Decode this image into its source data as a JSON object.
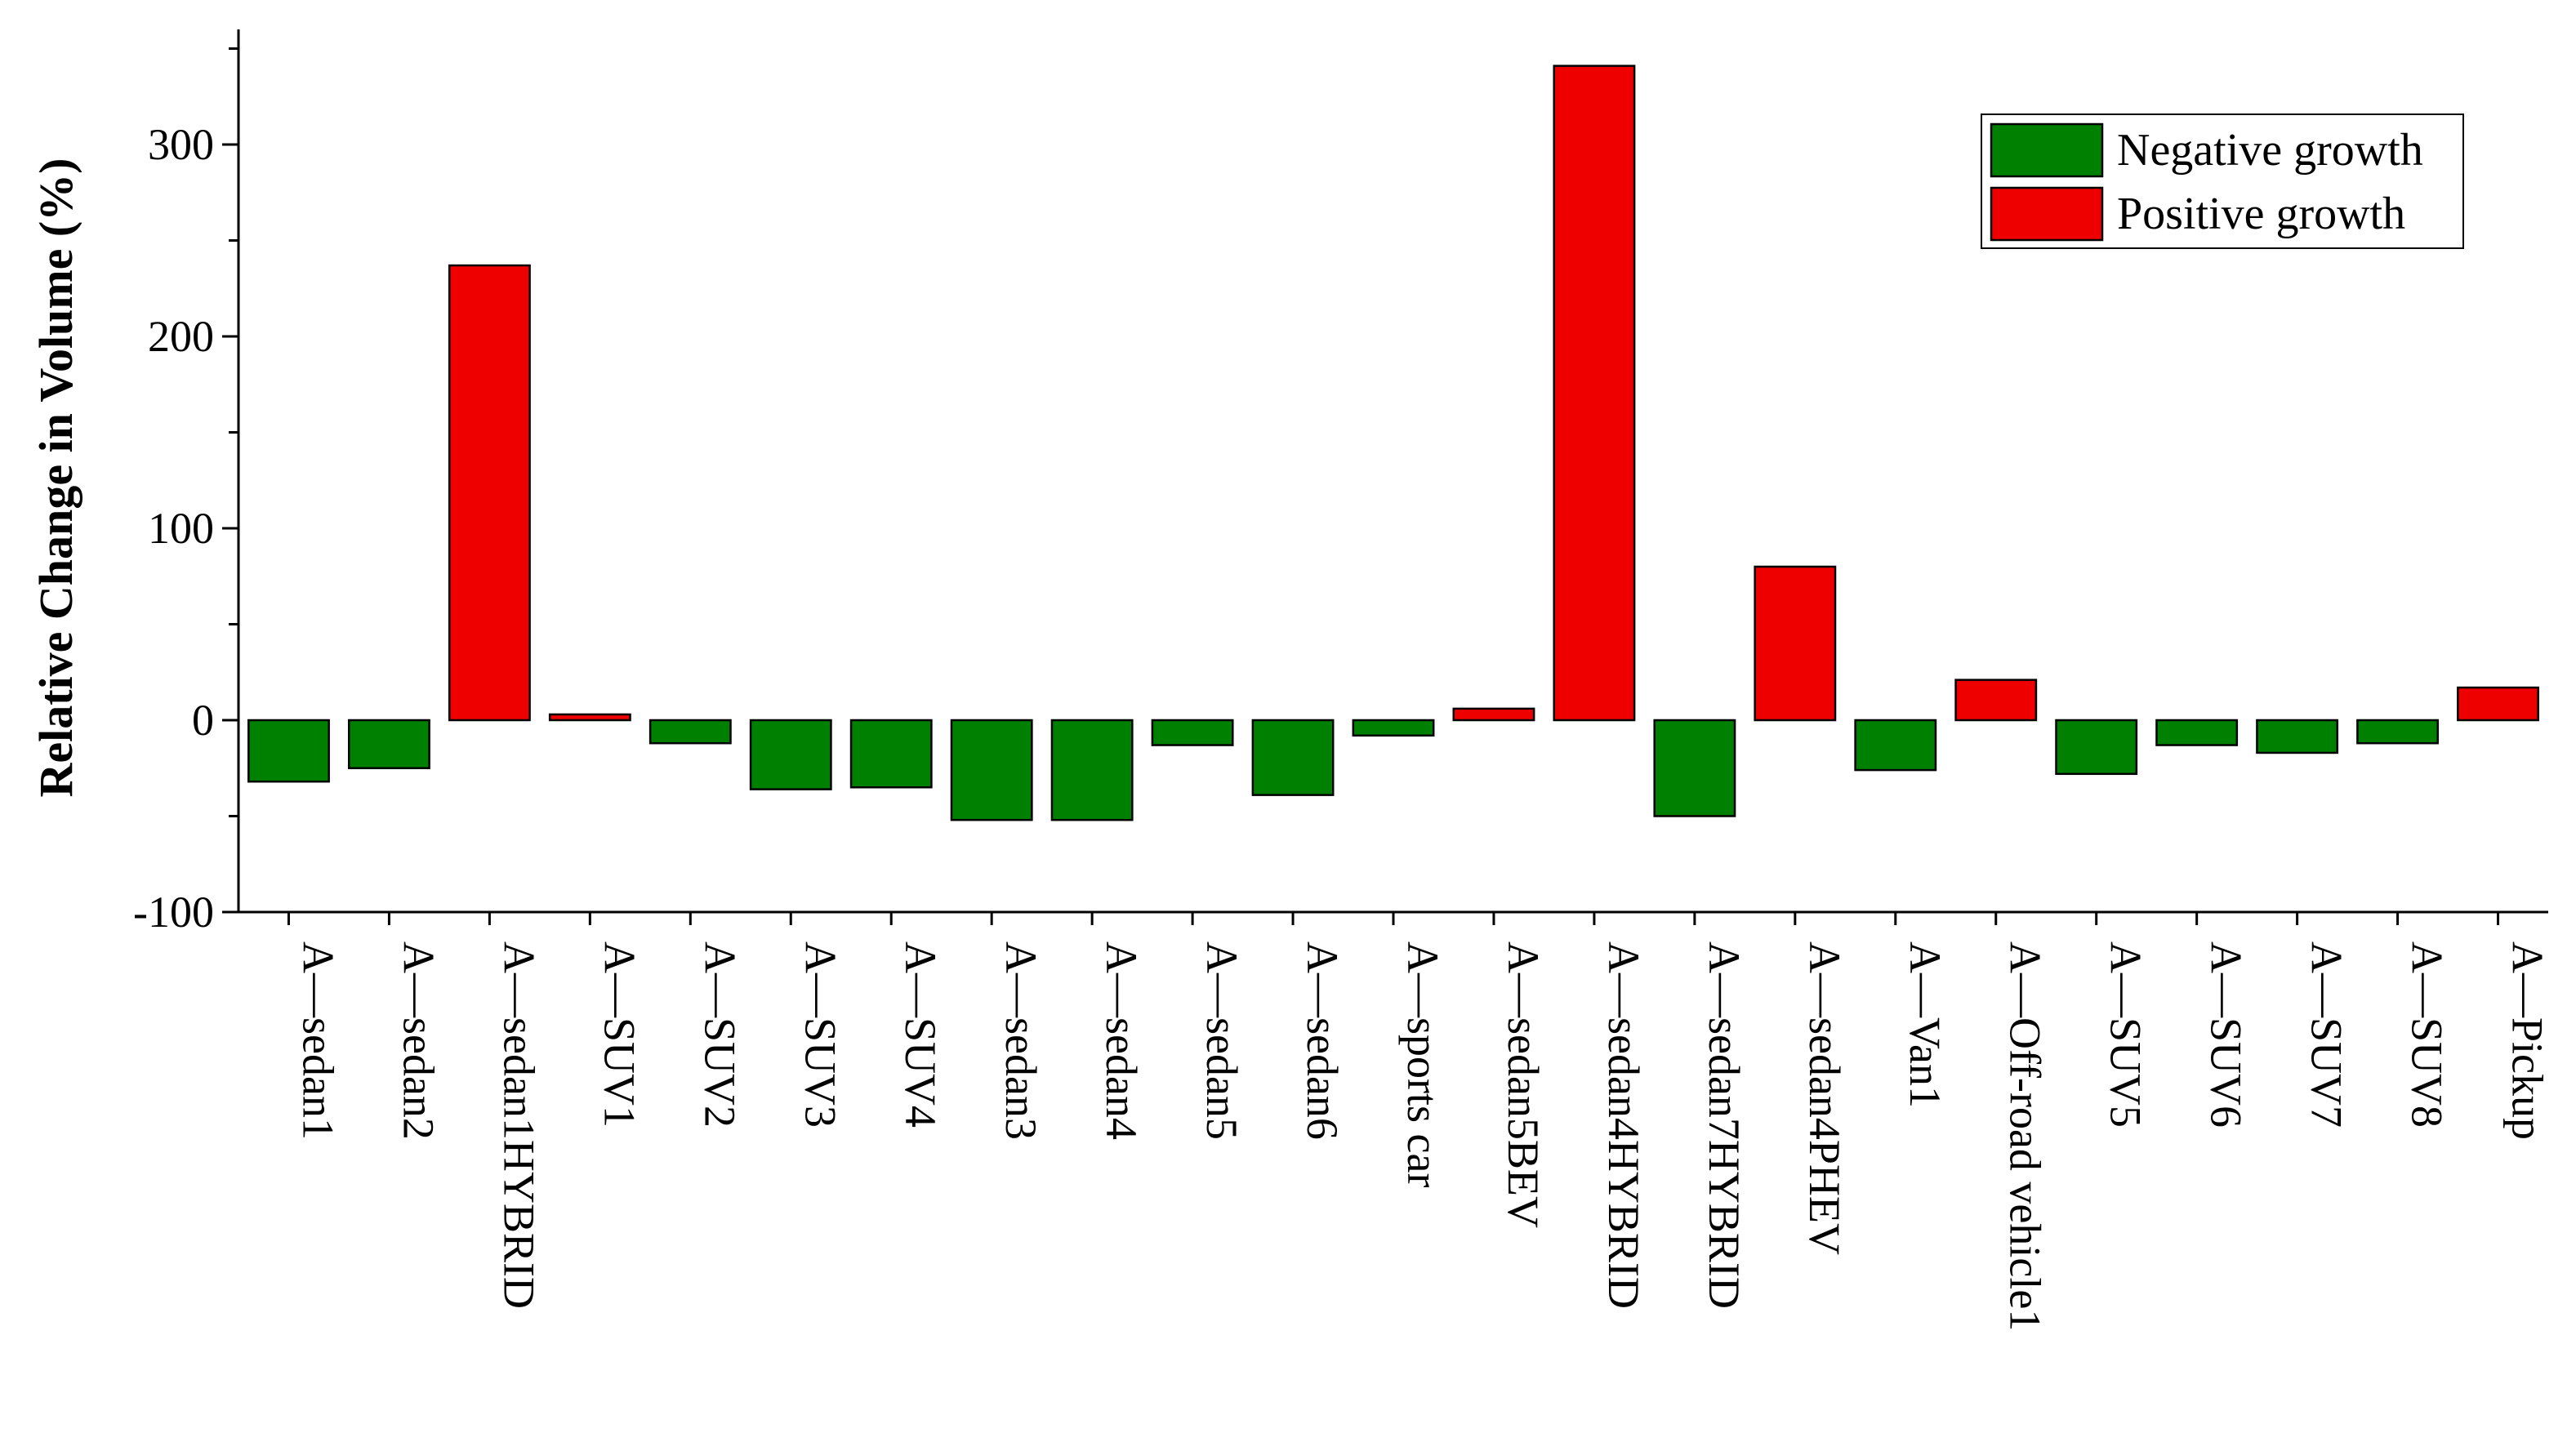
{
  "chart_data": {
    "type": "bar",
    "title": "",
    "xlabel": "",
    "ylabel": "Relative Change in Volume (%)",
    "ylim": [
      -100,
      350
    ],
    "yticks": [
      -100,
      0,
      100,
      200,
      300
    ],
    "grid": false,
    "legend_position": "top-right",
    "colors": {
      "negative": "#008000",
      "positive": "#ee0000"
    },
    "legend": [
      {
        "key": "negative",
        "label": "Negative growth"
      },
      {
        "key": "positive",
        "label": "Positive growth"
      }
    ],
    "categories": [
      "A—sedan1",
      "A—sedan2",
      "A—sedan1HYBRID",
      "A—SUV1",
      "A—SUV2",
      "A—SUV3",
      "A—SUV4",
      "A—sedan3",
      "A—sedan4",
      "A—sedan5",
      "A—sedan6",
      "A—sports car",
      "A—sedan5BEV",
      "A—sedan4HYBRID",
      "A—sedan7HYBRID",
      "A—sedan4PHEV",
      "A—Van1",
      "A—Off-road vehicle1",
      "A—SUV5",
      "A—SUV6",
      "A—SUV7",
      "A—SUV8",
      "A—Pickup"
    ],
    "values": [
      -32,
      -25,
      237,
      3,
      -12,
      -36,
      -35,
      -52,
      -52,
      -13,
      -39,
      -8,
      6,
      341,
      -50,
      80,
      -26,
      21,
      -28,
      -13,
      -17,
      -12,
      17
    ]
  }
}
